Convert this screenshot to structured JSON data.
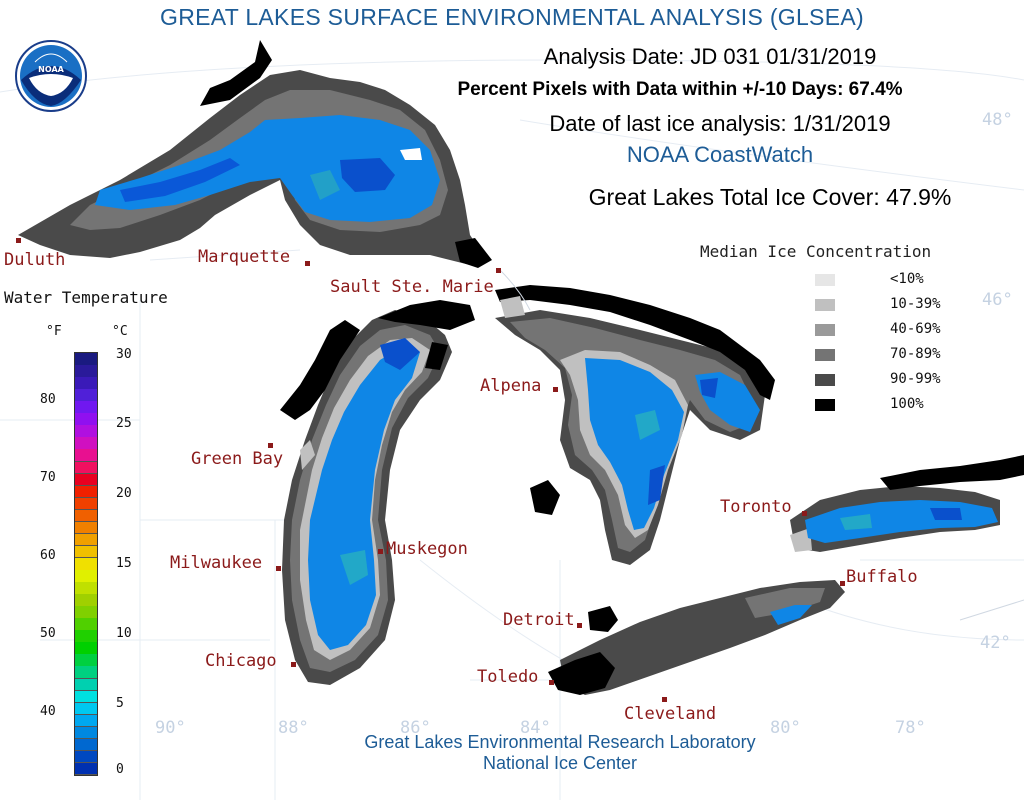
{
  "title": "GREAT LAKES SURFACE ENVIRONMENTAL ANALYSIS (GLSEA)",
  "header": {
    "analysis_date": "Analysis Date:  JD 031 01/31/2019",
    "percent_pixels": "Percent Pixels with Data within +/-10 Days:  67.4%",
    "last_ice": "Date of last ice analysis: 1/31/2019",
    "source": "NOAA CoastWatch",
    "total_ice": "Great Lakes Total Ice Cover:  47.9%"
  },
  "logo_text": "NOAA",
  "cities": [
    {
      "name": "Duluth"
    },
    {
      "name": "Marquette"
    },
    {
      "name": "Sault Ste. Marie"
    },
    {
      "name": "Alpena"
    },
    {
      "name": "Green Bay"
    },
    {
      "name": "Muskegon"
    },
    {
      "name": "Milwaukee"
    },
    {
      "name": "Chicago"
    },
    {
      "name": "Detroit"
    },
    {
      "name": "Toledo"
    },
    {
      "name": "Cleveland"
    },
    {
      "name": "Toronto"
    },
    {
      "name": "Buffalo"
    }
  ],
  "ice_legend": {
    "title": "Median Ice Concentration",
    "items": [
      {
        "label": "<10%",
        "color": "#e6e6e6"
      },
      {
        "label": "10-39%",
        "color": "#c0c0c0"
      },
      {
        "label": "40-69%",
        "color": "#9a9a9a"
      },
      {
        "label": "70-89%",
        "color": "#747474"
      },
      {
        "label": "90-99%",
        "color": "#4a4a4a"
      },
      {
        "label": "100%",
        "color": "#000000"
      }
    ]
  },
  "water_temp": {
    "title": "Water Temperature",
    "unit_f": "°F",
    "unit_c": "°C",
    "f_ticks": [
      "80",
      "70",
      "60",
      "50",
      "40"
    ],
    "c_ticks": [
      "30",
      "25",
      "20",
      "15",
      "10",
      "5",
      "0"
    ],
    "colors": [
      "#1a1a80",
      "#2a1a9a",
      "#3a1ab8",
      "#5020d8",
      "#7018f0",
      "#9010f0",
      "#b010e0",
      "#d010c0",
      "#e81090",
      "#f01060",
      "#e80020",
      "#f02000",
      "#f04000",
      "#f06000",
      "#f08000",
      "#f0a000",
      "#f0c000",
      "#f0e000",
      "#e0f000",
      "#c0e000",
      "#a0d000",
      "#80d000",
      "#50d000",
      "#20d000",
      "#00d000",
      "#00d040",
      "#00d080",
      "#00d0b0",
      "#00e0e0",
      "#00c8f0",
      "#00a8f0",
      "#0088e0",
      "#0068d0",
      "#0048c0",
      "#0030b0"
    ]
  },
  "coords": [
    "48°",
    "46°",
    "42°",
    "90°",
    "88°",
    "86°",
    "84°",
    "80°",
    "78°"
  ],
  "footer": {
    "line1": "Great Lakes Environmental Research Laboratory",
    "line2": "National Ice Center"
  }
}
